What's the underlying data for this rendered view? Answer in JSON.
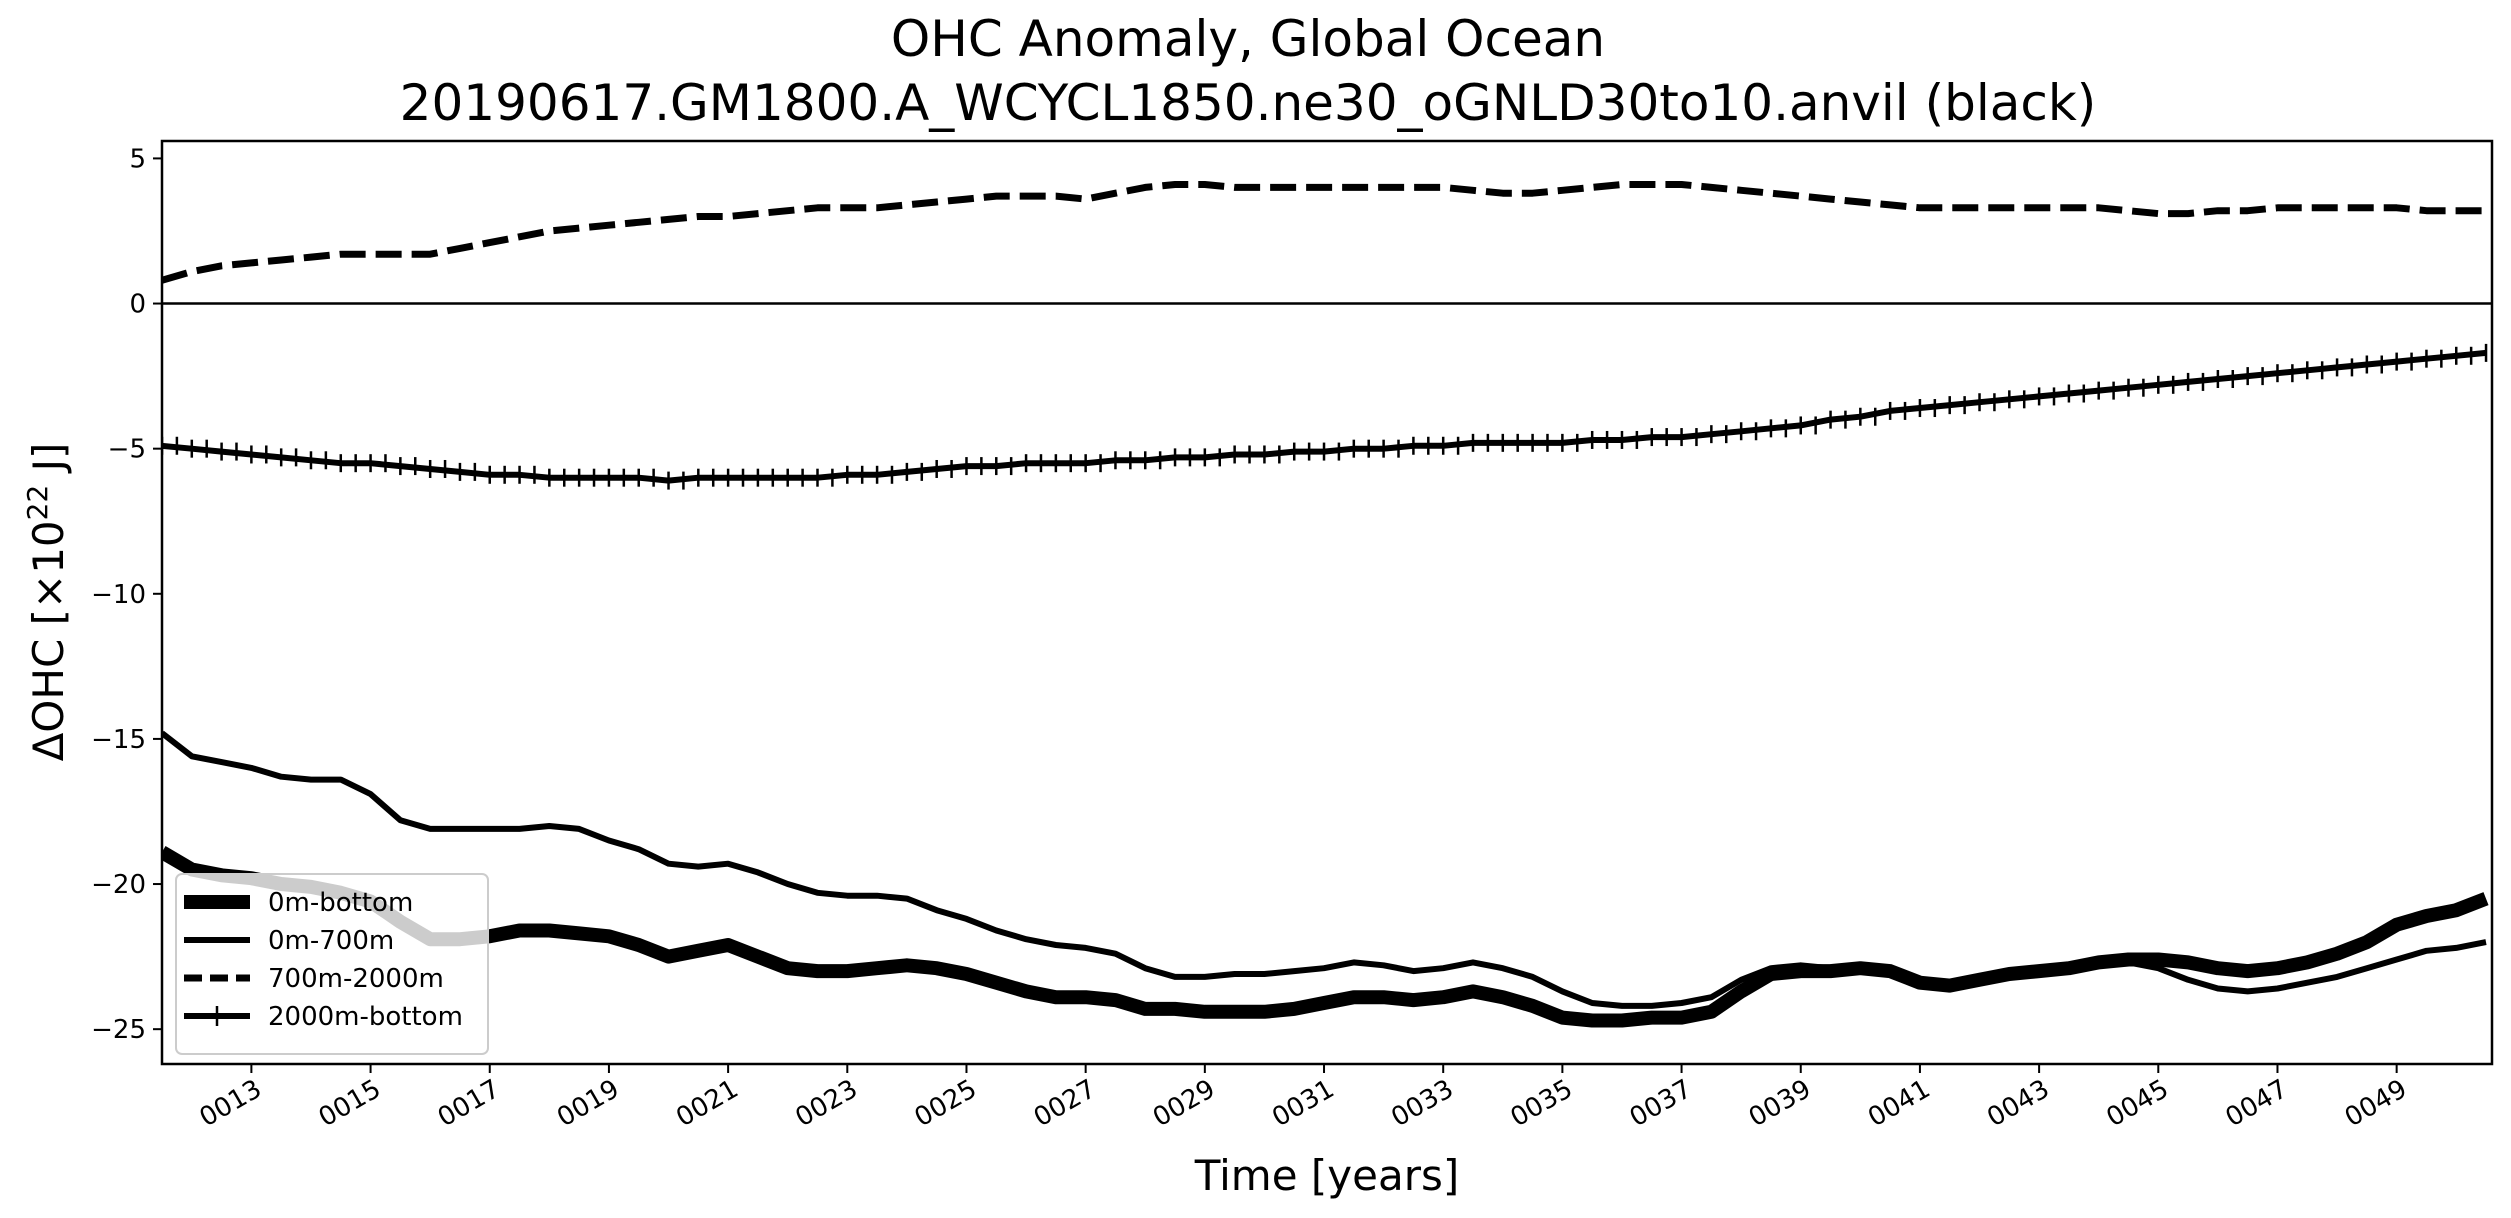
{
  "chart_data": {
    "type": "line",
    "title": "OHC Anomaly, Global Ocean",
    "subtitle": "20190617.GM1800.A_WCYCL1850.ne30_oGNLD30to10.anvil (black)",
    "xlabel": "Time [years]",
    "ylabel_prefix": "ΔOHC [×10",
    "ylabel_sup": "22",
    "ylabel_suffix": " J]",
    "xlim": [
      11.5,
      50.6
    ],
    "ylim": [
      -26.2,
      5.6
    ],
    "x_ticks": [
      13,
      15,
      17,
      19,
      21,
      23,
      25,
      27,
      29,
      31,
      33,
      35,
      37,
      39,
      41,
      43,
      45,
      47,
      49
    ],
    "x_tick_labels": [
      "0013",
      "0015",
      "0017",
      "0019",
      "0021",
      "0023",
      "0025",
      "0027",
      "0029",
      "0031",
      "0033",
      "0035",
      "0037",
      "0039",
      "0041",
      "0043",
      "0045",
      "0047",
      "0049"
    ],
    "y_ticks": [
      5,
      0,
      -5,
      -10,
      -15,
      -20,
      -25
    ],
    "y_tick_labels": [
      "5",
      "0",
      "−5",
      "−10",
      "−15",
      "−20",
      "−25"
    ],
    "zero_line": true,
    "grid": false,
    "legend_position": "lower-left",
    "x": [
      11.5,
      12,
      12.5,
      13,
      13.5,
      14,
      14.5,
      15,
      15.5,
      16,
      16.5,
      17,
      17.5,
      18,
      18.5,
      19,
      19.5,
      20,
      20.5,
      21,
      21.5,
      22,
      22.5,
      23,
      23.5,
      24,
      24.5,
      25,
      25.5,
      26,
      26.5,
      27,
      27.5,
      28,
      28.5,
      29,
      29.5,
      30,
      30.5,
      31,
      31.5,
      32,
      32.5,
      33,
      33.5,
      34,
      34.5,
      35,
      35.5,
      36,
      36.5,
      37,
      37.5,
      38,
      38.5,
      39,
      39.5,
      40,
      40.5,
      41,
      41.5,
      42,
      42.5,
      43,
      43.5,
      44,
      44.5,
      45,
      45.5,
      46,
      46.5,
      47,
      47.5,
      48,
      48.5,
      49,
      49.5,
      50,
      50.5
    ],
    "series": [
      {
        "name": "0m-bottom",
        "style": "thick",
        "values": [
          -18.9,
          -19.5,
          -19.7,
          -19.8,
          -20.0,
          -20.1,
          -20.3,
          -20.6,
          -21.3,
          -21.9,
          -21.9,
          -21.8,
          -21.6,
          -21.6,
          -21.7,
          -21.8,
          -22.1,
          -22.5,
          -22.3,
          -22.1,
          -22.5,
          -22.9,
          -23.0,
          -23.0,
          -22.9,
          -22.8,
          -22.9,
          -23.1,
          -23.4,
          -23.7,
          -23.9,
          -23.9,
          -24.0,
          -24.3,
          -24.3,
          -24.4,
          -24.4,
          -24.4,
          -24.3,
          -24.1,
          -23.9,
          -23.9,
          -24.0,
          -23.9,
          -23.7,
          -23.9,
          -24.2,
          -24.6,
          -24.7,
          -24.7,
          -24.6,
          -24.6,
          -24.4,
          -23.7,
          -23.1,
          -23.0,
          -23.0,
          -22.9,
          -23.0,
          -23.4,
          -23.5,
          -23.3,
          -23.1,
          -23.0,
          -22.9,
          -22.7,
          -22.6,
          -22.6,
          -22.7,
          -22.9,
          -23.0,
          -22.9,
          -22.7,
          -22.4,
          -22.0,
          -21.4,
          -21.1,
          -20.9,
          -20.5
        ]
      },
      {
        "name": "0m-700m",
        "style": "solid",
        "values": [
          -14.8,
          -15.6,
          -15.8,
          -16.0,
          -16.3,
          -16.4,
          -16.4,
          -16.9,
          -17.8,
          -18.1,
          -18.1,
          -18.1,
          -18.1,
          -18.0,
          -18.1,
          -18.5,
          -18.8,
          -19.3,
          -19.4,
          -19.3,
          -19.6,
          -20.0,
          -20.3,
          -20.4,
          -20.4,
          -20.5,
          -20.9,
          -21.2,
          -21.6,
          -21.9,
          -22.1,
          -22.2,
          -22.4,
          -22.9,
          -23.2,
          -23.2,
          -23.1,
          -23.1,
          -23.0,
          -22.9,
          -22.7,
          -22.8,
          -23.0,
          -22.9,
          -22.7,
          -22.9,
          -23.2,
          -23.7,
          -24.1,
          -24.2,
          -24.2,
          -24.1,
          -23.9,
          -23.3,
          -22.9,
          -22.8,
          -22.9,
          -22.9,
          -23.1,
          -23.4,
          -23.5,
          -23.3,
          -23.1,
          -23.0,
          -22.9,
          -22.8,
          -22.7,
          -22.9,
          -23.3,
          -23.6,
          -23.7,
          -23.6,
          -23.4,
          -23.2,
          -22.9,
          -22.6,
          -22.3,
          -22.2,
          -22.0
        ]
      },
      {
        "name": "700m-2000m",
        "style": "dashed",
        "values": [
          0.8,
          1.1,
          1.3,
          1.4,
          1.5,
          1.6,
          1.7,
          1.7,
          1.7,
          1.7,
          1.9,
          2.1,
          2.3,
          2.5,
          2.6,
          2.7,
          2.8,
          2.9,
          3.0,
          3.0,
          3.1,
          3.2,
          3.3,
          3.3,
          3.3,
          3.4,
          3.5,
          3.6,
          3.7,
          3.7,
          3.7,
          3.6,
          3.8,
          4.0,
          4.1,
          4.1,
          4.0,
          4.0,
          4.0,
          4.0,
          4.0,
          4.0,
          4.0,
          4.0,
          3.9,
          3.8,
          3.8,
          3.9,
          4.0,
          4.1,
          4.1,
          4.1,
          4.0,
          3.9,
          3.8,
          3.7,
          3.6,
          3.5,
          3.4,
          3.3,
          3.3,
          3.3,
          3.3,
          3.3,
          3.3,
          3.3,
          3.2,
          3.1,
          3.1,
          3.2,
          3.2,
          3.3,
          3.3,
          3.3,
          3.3,
          3.3,
          3.2,
          3.2,
          3.2
        ]
      },
      {
        "name": "2000m-bottom",
        "style": "plus",
        "values": [
          -4.9,
          -5.0,
          -5.1,
          -5.2,
          -5.3,
          -5.4,
          -5.5,
          -5.5,
          -5.6,
          -5.7,
          -5.8,
          -5.9,
          -5.9,
          -6.0,
          -6.0,
          -6.0,
          -6.0,
          -6.1,
          -6.0,
          -6.0,
          -6.0,
          -6.0,
          -6.0,
          -5.9,
          -5.9,
          -5.8,
          -5.7,
          -5.6,
          -5.6,
          -5.5,
          -5.5,
          -5.5,
          -5.4,
          -5.4,
          -5.3,
          -5.3,
          -5.2,
          -5.2,
          -5.1,
          -5.1,
          -5.0,
          -5.0,
          -4.9,
          -4.9,
          -4.8,
          -4.8,
          -4.8,
          -4.8,
          -4.7,
          -4.7,
          -4.6,
          -4.6,
          -4.5,
          -4.4,
          -4.3,
          -4.2,
          -4.0,
          -3.9,
          -3.7,
          -3.6,
          -3.5,
          -3.4,
          -3.3,
          -3.2,
          -3.1,
          -3.0,
          -2.9,
          -2.8,
          -2.7,
          -2.6,
          -2.5,
          -2.4,
          -2.3,
          -2.2,
          -2.1,
          -2.0,
          -1.9,
          -1.8,
          -1.7
        ]
      }
    ]
  }
}
